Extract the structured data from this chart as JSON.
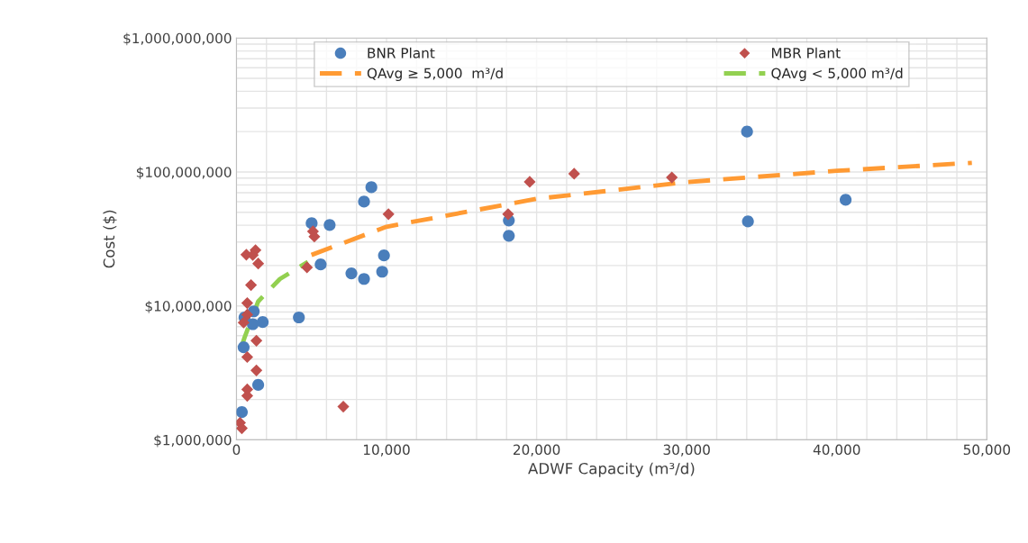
{
  "chart_data": {
    "type": "scatter",
    "xlabel": "ADWF Capacity (m³/d)",
    "ylabel": "Cost ($)",
    "log": "y",
    "grid": true,
    "legend": "top",
    "xlim": [
      0,
      50000
    ],
    "xticks": [
      0,
      {
        "value": 2000,
        "label": null
      },
      {
        "value": 4000,
        "label": null
      },
      {
        "value": 6000,
        "label": null
      },
      {
        "value": 8000,
        "label": null
      },
      {
        "value": 10000,
        "label": "10,000"
      },
      {
        "value": 12000,
        "label": null
      },
      {
        "value": 14000,
        "label": null
      },
      {
        "value": 16000,
        "label": null
      },
      {
        "value": 18000,
        "label": null
      },
      {
        "value": 20000,
        "label": "20,000"
      },
      {
        "value": 22000,
        "label": null
      },
      {
        "value": 24000,
        "label": null
      },
      {
        "value": 26000,
        "label": null
      },
      {
        "value": 28000,
        "label": null
      },
      {
        "value": 30000,
        "label": "30,000"
      },
      {
        "value": 32000,
        "label": null
      },
      {
        "value": 34000,
        "label": null
      },
      {
        "value": 36000,
        "label": null
      },
      {
        "value": 38000,
        "label": null
      },
      {
        "value": 40000,
        "label": "40,000"
      },
      {
        "value": 42000,
        "label": null
      },
      {
        "value": 44000,
        "label": null
      },
      {
        "value": 46000,
        "label": null
      },
      {
        "value": 48000,
        "label": null
      },
      {
        "value": 50000,
        "label": "50,000"
      }
    ],
    "ylim": [
      1000000,
      1000000000
    ],
    "yticks": [
      {
        "value": 1000000,
        "label": "$1,000,000"
      },
      {
        "value": 2000000,
        "label": null
      },
      {
        "value": 3000000,
        "label": null
      },
      {
        "value": 4000000,
        "label": null
      },
      {
        "value": 5000000,
        "label": null
      },
      {
        "value": 6000000,
        "label": null
      },
      {
        "value": 7000000,
        "label": null
      },
      {
        "value": 8000000,
        "label": null
      },
      {
        "value": 9000000,
        "label": null
      },
      {
        "value": 10000000,
        "label": "$10,000,000"
      },
      {
        "value": 20000000,
        "label": null
      },
      {
        "value": 30000000,
        "label": null
      },
      {
        "value": 40000000,
        "label": null
      },
      {
        "value": 50000000,
        "label": null
      },
      {
        "value": 60000000,
        "label": null
      },
      {
        "value": 70000000,
        "label": null
      },
      {
        "value": 80000000,
        "label": null
      },
      {
        "value": 90000000,
        "label": null
      },
      {
        "value": 100000000,
        "label": "$100,000,000"
      },
      {
        "value": 200000000,
        "label": null
      },
      {
        "value": 300000000,
        "label": null
      },
      {
        "value": 400000000,
        "label": null
      },
      {
        "value": 500000000,
        "label": null
      },
      {
        "value": 600000000,
        "label": null
      },
      {
        "value": 700000000,
        "label": null
      },
      {
        "value": 800000000,
        "label": null
      },
      {
        "value": 900000000,
        "label": null
      },
      {
        "value": 1000000000,
        "label": "$1,000,000,000"
      }
    ],
    "series": [
      {
        "name": "BNR Plant",
        "marker": "circle",
        "color": "#4a7ebb",
        "x": [
          360,
          480,
          1450,
          1750,
          1090,
          540,
          1150,
          4160,
          5610,
          7660,
          8500,
          9710,
          9830,
          5010,
          6210,
          8500,
          8990,
          18150,
          18150,
          34020,
          34080,
          40590
        ],
        "values": [
          1610000,
          4910000,
          2570000,
          7570000,
          7300000,
          8200000,
          9100000,
          8200000,
          20400000,
          17500000,
          15900000,
          18000000,
          23800000,
          41400000,
          40200000,
          60000000,
          76900000,
          43400000,
          33400000,
          200000000,
          42700000,
          61900000
        ]
      },
      {
        "name": "MBR Plant",
        "marker": "diamond",
        "color": "#c0504d",
        "x": [
          5190,
          5100,
          660,
          1270,
          1450,
          1090,
          970,
          720,
          720,
          480,
          1330,
          720,
          1330,
          720,
          720,
          240,
          360,
          7120,
          4700,
          10130,
          18100,
          19540,
          22500,
          29010
        ],
        "values": [
          32900000,
          36000000,
          24100000,
          26100000,
          20700000,
          24000000,
          14300000,
          10500000,
          8600000,
          7500000,
          5500000,
          4150000,
          3300000,
          2380000,
          2130000,
          1340000,
          1220000,
          1770000,
          19400000,
          48400000,
          48400000,
          84400000,
          97000000,
          91000000
        ]
      },
      {
        "name": "QAvg ≥ 5,000  m³/d",
        "type": "line",
        "marker": "none",
        "line_style": "dashed",
        "color": "#ff9a33",
        "x": [
          5000,
          10000,
          20000,
          30000,
          40000,
          49000
        ],
        "values": [
          24000000,
          39000000,
          63000000,
          84000000,
          102000000,
          117000000
        ]
      },
      {
        "name": "QAvg < 5,000 m³/d",
        "type": "line",
        "marker": "none",
        "line_style": "dashed",
        "color": "#92d050",
        "x": [
          300,
          540,
          1450,
          2900,
          4760
        ],
        "values": [
          4800000,
          5800000,
          10800000,
          15900000,
          21300000
        ]
      }
    ]
  }
}
